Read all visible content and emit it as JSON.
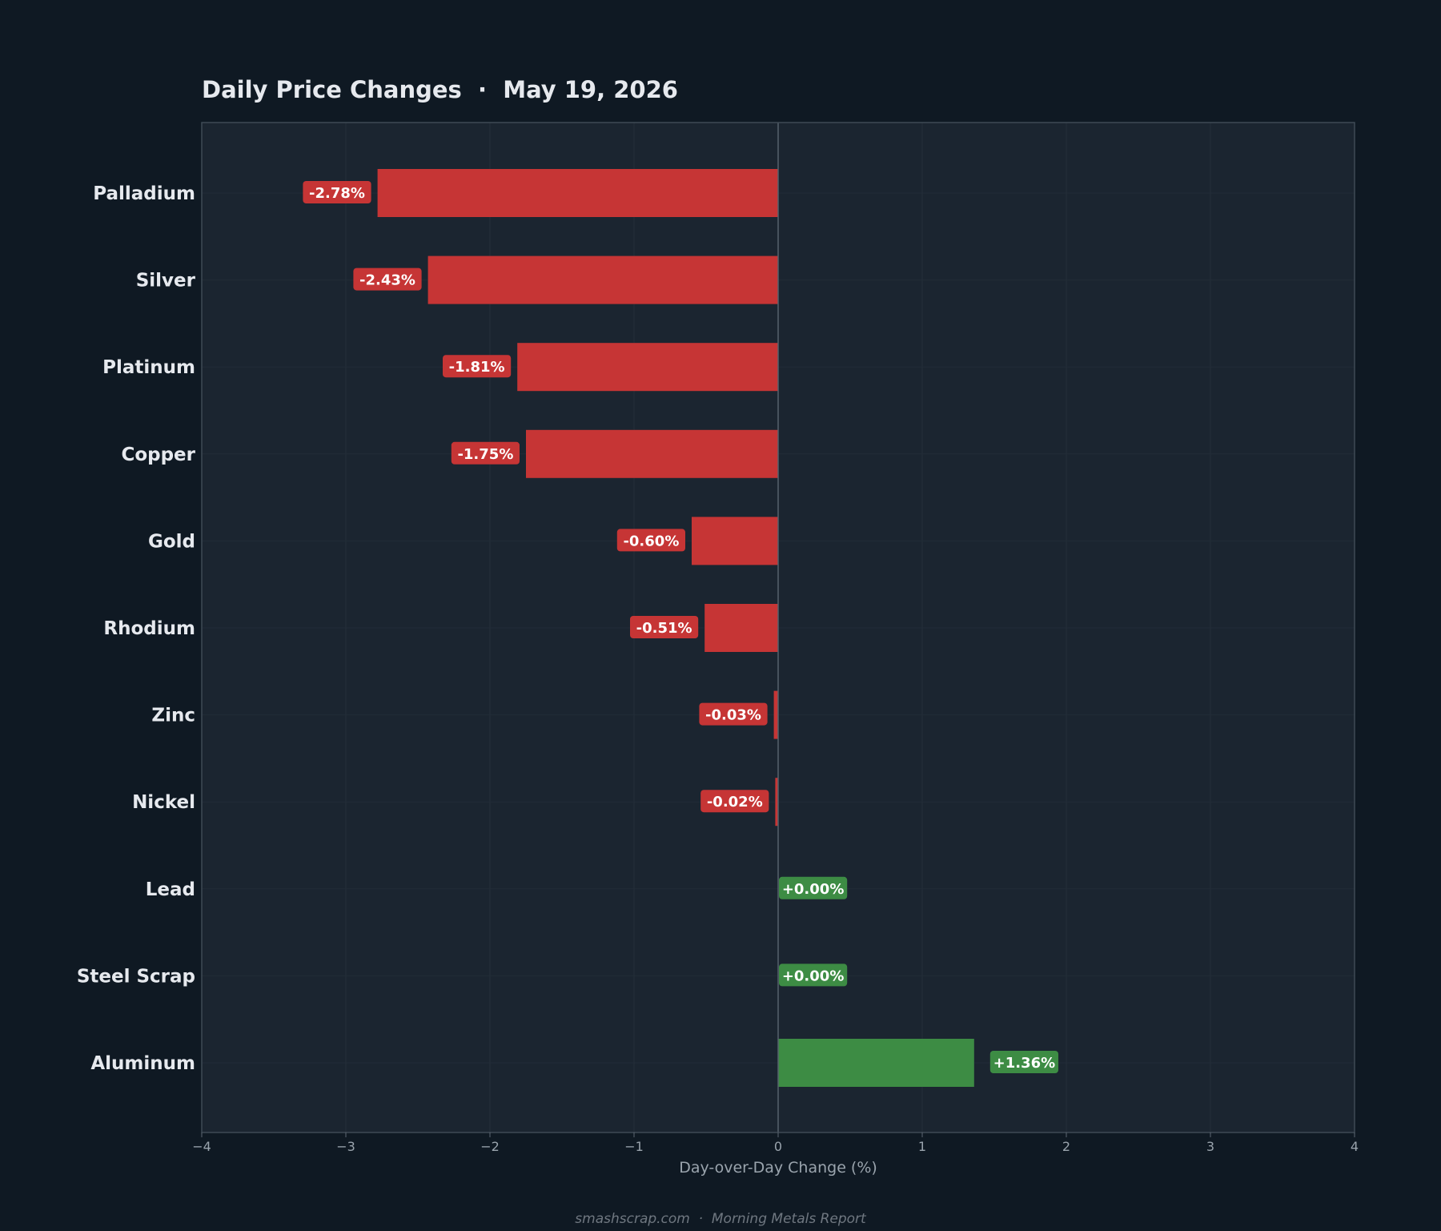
{
  "chart_data": {
    "type": "bar",
    "orientation": "horizontal",
    "title": "Daily Price Changes  ·  May 19, 2026",
    "xlabel": "Day-over-Day Change (%)",
    "ylabel": "",
    "xlim": [
      -4,
      4
    ],
    "x_ticks": [
      -4,
      -3,
      -2,
      -1,
      0,
      1,
      2,
      3,
      4
    ],
    "x_tick_labels": [
      "−4",
      "−3",
      "−2",
      "−1",
      "0",
      "1",
      "2",
      "3",
      "4"
    ],
    "grid": true,
    "categories": [
      "Palladium",
      "Silver",
      "Platinum",
      "Copper",
      "Gold",
      "Rhodium",
      "Zinc",
      "Nickel",
      "Lead",
      "Steel Scrap",
      "Aluminum"
    ],
    "values": [
      -2.78,
      -2.43,
      -1.81,
      -1.75,
      -0.6,
      -0.51,
      -0.03,
      -0.02,
      0.0,
      0.0,
      1.36
    ],
    "data_labels": [
      "-2.78%",
      "-2.43%",
      "-1.81%",
      "-1.75%",
      "-0.60%",
      "-0.51%",
      "-0.03%",
      "-0.02%",
      "+0.00%",
      "+0.00%",
      "+1.36%"
    ],
    "colors": {
      "negative": "#c63535",
      "positive": "#3d8c44",
      "plot_background": "#1b2530",
      "page_background": "#0f1923",
      "frame": "#3f4a55",
      "zero_line": "#56616c"
    }
  },
  "footer": "smashscrap.com  ·  Morning Metals Report"
}
